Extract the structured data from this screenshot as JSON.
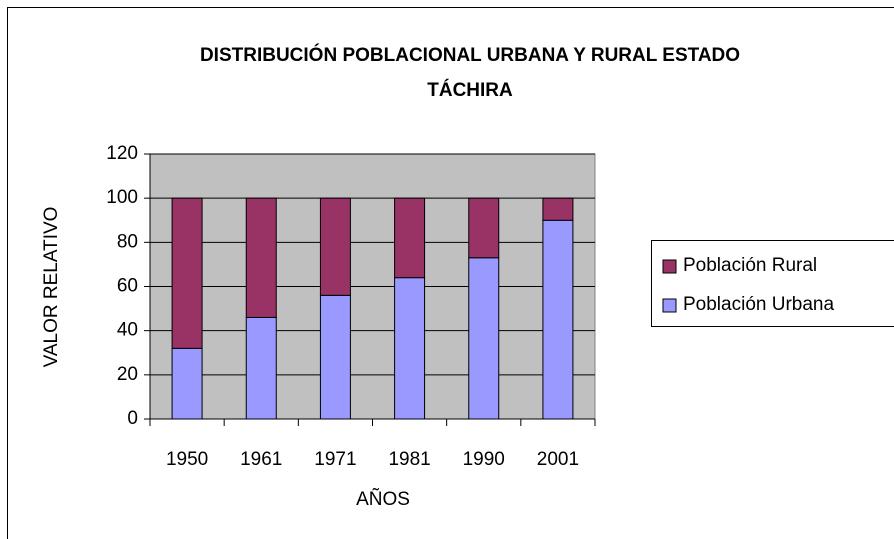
{
  "chart_data": {
    "type": "stacked_bar",
    "title": [
      "DISTRIBUCIÓN POBLACIONAL URBANA Y RURAL ESTADO",
      "TÁCHIRA"
    ],
    "xlabel": "AÑOS",
    "ylabel": "VALOR RELATIVO",
    "categories": [
      "1950",
      "1961",
      "1971",
      "1981",
      "1990",
      "2001"
    ],
    "series": [
      {
        "name": "Población Urbana",
        "color": "#9999ff",
        "values": [
          32,
          46,
          56,
          64,
          73,
          90
        ]
      },
      {
        "name": "Población Rural",
        "color": "#993366",
        "values": [
          68,
          54,
          44,
          36,
          27,
          10
        ]
      }
    ],
    "ylim": [
      0,
      120
    ],
    "yticks": [
      0,
      20,
      40,
      60,
      80,
      100,
      120
    ],
    "grid": true,
    "plot_background": "#c0c0c0",
    "legend": "right"
  }
}
